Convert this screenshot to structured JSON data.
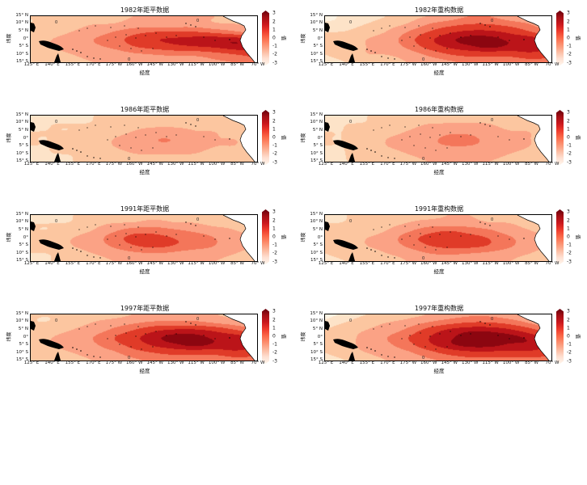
{
  "figure": {
    "background": "#ffffff"
  },
  "chart_data": {
    "type": "heatmap",
    "title": "",
    "axis": {
      "x_label": "经度",
      "y_label": "纬度",
      "x_ticks": [
        "125° E",
        "140° E",
        "155° E",
        "170° E",
        "175° W",
        "160° W",
        "145° W",
        "130° W",
        "115° W",
        "100° W",
        "85° W",
        "70° W"
      ],
      "y_ticks": [
        "15° N",
        "10° N",
        "5° N",
        "0°",
        "5° S",
        "10° S",
        "15° S"
      ],
      "x_range_deg": [
        125,
        -70
      ],
      "y_range_deg": [
        15,
        -15
      ]
    },
    "colorbar": {
      "label": "值",
      "ticks": [
        "3",
        "2",
        "1",
        "0",
        "-1",
        "-2",
        "-3"
      ],
      "range": [
        -3,
        3
      ],
      "colors": [
        "#67000d",
        "#a50f15",
        "#cb181d",
        "#ef3b2c",
        "#fb6a4a",
        "#fc9272",
        "#fcbba1",
        "#fee0d2",
        "#fff5eb"
      ]
    },
    "contour_label": "0",
    "levels": [
      0.25,
      0.5,
      1.0,
      1.5,
      2.0,
      2.5,
      2.85
    ],
    "level_colors": [
      "#fdf3e3",
      "#fde3c8",
      "#fcc6a0",
      "#fba285",
      "#f4765a",
      "#e03b28",
      "#bb1419",
      "#8c0610"
    ],
    "grid_shape": {
      "lat_rows": 7,
      "lon_cols": 12
    },
    "panels": [
      {
        "title": "1982年距平数据",
        "values": [
          [
            0.5,
            0.5,
            0.5,
            0.6,
            0.8,
            1.0,
            1.0,
            1.0,
            1.0,
            1.0,
            0.8,
            0.6
          ],
          [
            0.5,
            0.6,
            0.8,
            1.0,
            1.0,
            1.2,
            1.2,
            1.2,
            1.2,
            1.0,
            1.0,
            0.8
          ],
          [
            0.8,
            0.8,
            1.0,
            1.2,
            1.5,
            1.8,
            2.0,
            2.0,
            2.0,
            1.8,
            1.5,
            1.2
          ],
          [
            0.8,
            1.0,
            1.2,
            1.5,
            1.8,
            2.2,
            2.5,
            2.6,
            2.7,
            2.8,
            2.8,
            2.5
          ],
          [
            0.8,
            1.0,
            1.2,
            1.4,
            1.6,
            2.0,
            2.2,
            2.4,
            2.5,
            2.6,
            2.8,
            2.8
          ],
          [
            0.5,
            0.8,
            1.0,
            1.2,
            1.2,
            1.4,
            1.5,
            1.6,
            1.6,
            1.8,
            2.0,
            2.2
          ],
          [
            0.5,
            0.5,
            0.8,
            1.0,
            1.0,
            1.0,
            1.2,
            1.2,
            1.2,
            1.4,
            1.5,
            1.8
          ]
        ]
      },
      {
        "title": "1982年重构数据",
        "values": [
          [
            0.2,
            0.3,
            0.3,
            0.5,
            0.8,
            1.0,
            1.2,
            1.5,
            1.5,
            1.2,
            1.0,
            0.8
          ],
          [
            0.3,
            0.3,
            0.5,
            0.8,
            1.0,
            1.5,
            1.8,
            2.0,
            2.0,
            1.8,
            1.5,
            1.0
          ],
          [
            0.5,
            0.5,
            0.8,
            1.0,
            1.5,
            2.0,
            2.4,
            2.6,
            2.6,
            2.4,
            2.0,
            1.5
          ],
          [
            0.5,
            0.8,
            1.0,
            1.2,
            1.8,
            2.4,
            2.8,
            3.0,
            3.0,
            2.8,
            2.8,
            2.4
          ],
          [
            0.5,
            0.8,
            1.0,
            1.2,
            1.6,
            2.2,
            2.6,
            2.8,
            3.0,
            2.8,
            2.8,
            2.6
          ],
          [
            0.5,
            0.8,
            1.0,
            1.0,
            1.2,
            1.6,
            2.0,
            2.2,
            2.2,
            2.2,
            2.4,
            2.2
          ],
          [
            0.3,
            0.5,
            0.8,
            0.8,
            1.0,
            1.2,
            1.4,
            1.6,
            1.6,
            1.6,
            1.8,
            1.8
          ]
        ]
      },
      {
        "title": "1986年距平数据",
        "values": [
          [
            0.3,
            0.3,
            0.3,
            0.5,
            0.5,
            0.5,
            0.5,
            0.5,
            0.5,
            0.5,
            0.5,
            0.3
          ],
          [
            0.3,
            0.5,
            0.5,
            0.5,
            0.8,
            0.8,
            0.8,
            0.8,
            0.8,
            0.8,
            0.5,
            0.5
          ],
          [
            0.5,
            0.5,
            0.5,
            0.8,
            0.8,
            1.0,
            1.2,
            1.2,
            1.0,
            1.0,
            0.8,
            0.5
          ],
          [
            0.5,
            0.5,
            0.8,
            0.8,
            1.0,
            1.2,
            1.5,
            1.5,
            1.2,
            1.0,
            1.0,
            0.8
          ],
          [
            0.5,
            0.5,
            0.8,
            0.8,
            1.0,
            1.2,
            1.4,
            1.4,
            1.2,
            1.0,
            1.0,
            0.8
          ],
          [
            0.3,
            0.5,
            0.5,
            0.8,
            0.8,
            1.0,
            1.0,
            1.0,
            1.0,
            0.8,
            0.8,
            0.5
          ],
          [
            0.3,
            0.3,
            0.5,
            0.5,
            0.5,
            0.8,
            0.8,
            0.8,
            0.8,
            0.5,
            0.5,
            0.5
          ]
        ]
      },
      {
        "title": "1986年重构数据",
        "values": [
          [
            0.3,
            0.3,
            0.5,
            0.5,
            0.5,
            0.5,
            0.8,
            0.8,
            0.8,
            0.5,
            0.5,
            0.5
          ],
          [
            0.3,
            0.5,
            0.5,
            0.8,
            0.8,
            1.0,
            1.0,
            1.0,
            1.0,
            0.8,
            0.8,
            0.5
          ],
          [
            0.5,
            0.5,
            0.8,
            0.8,
            1.0,
            1.2,
            1.4,
            1.4,
            1.2,
            1.0,
            1.0,
            0.8
          ],
          [
            0.5,
            0.5,
            0.8,
            1.0,
            1.2,
            1.4,
            1.6,
            1.6,
            1.4,
            1.2,
            1.0,
            0.8
          ],
          [
            0.5,
            0.5,
            0.8,
            1.0,
            1.2,
            1.4,
            1.5,
            1.5,
            1.4,
            1.2,
            1.0,
            0.8
          ],
          [
            0.3,
            0.5,
            0.8,
            0.8,
            1.0,
            1.2,
            1.2,
            1.2,
            1.2,
            1.0,
            0.8,
            0.5
          ],
          [
            0.3,
            0.5,
            0.5,
            0.8,
            0.8,
            1.0,
            1.0,
            1.0,
            1.0,
            0.8,
            0.5,
            0.5
          ]
        ]
      },
      {
        "title": "1991年距平数据",
        "values": [
          [
            0.3,
            0.3,
            0.5,
            0.5,
            0.5,
            0.8,
            0.8,
            0.8,
            0.8,
            0.5,
            0.5,
            0.5
          ],
          [
            0.5,
            0.5,
            0.5,
            0.8,
            1.0,
            1.0,
            1.2,
            1.0,
            1.0,
            0.8,
            0.8,
            0.5
          ],
          [
            0.5,
            0.5,
            0.8,
            1.0,
            1.4,
            1.8,
            1.8,
            1.6,
            1.4,
            1.2,
            1.0,
            0.8
          ],
          [
            0.5,
            0.8,
            1.0,
            1.2,
            1.8,
            2.2,
            2.2,
            2.0,
            1.8,
            1.5,
            1.2,
            1.0
          ],
          [
            0.5,
            0.8,
            1.0,
            1.2,
            1.6,
            2.0,
            2.2,
            2.0,
            1.8,
            1.5,
            1.2,
            1.0
          ],
          [
            0.5,
            0.5,
            0.8,
            1.0,
            1.2,
            1.4,
            1.5,
            1.4,
            1.2,
            1.2,
            1.0,
            0.8
          ],
          [
            0.3,
            0.5,
            0.8,
            0.8,
            1.0,
            1.0,
            1.2,
            1.2,
            1.0,
            1.0,
            0.8,
            0.8
          ]
        ]
      },
      {
        "title": "1991年重构数据",
        "values": [
          [
            0.3,
            0.5,
            0.5,
            0.5,
            0.8,
            0.8,
            1.0,
            1.0,
            0.8,
            0.8,
            0.5,
            0.5
          ],
          [
            0.5,
            0.5,
            0.8,
            0.8,
            1.0,
            1.2,
            1.2,
            1.2,
            1.0,
            1.0,
            0.8,
            0.5
          ],
          [
            0.5,
            0.8,
            0.8,
            1.0,
            1.4,
            1.8,
            2.0,
            1.8,
            1.6,
            1.2,
            1.0,
            0.8
          ],
          [
            0.5,
            0.8,
            1.0,
            1.2,
            1.8,
            2.2,
            2.4,
            2.2,
            2.0,
            1.6,
            1.2,
            1.0
          ],
          [
            0.5,
            0.8,
            1.0,
            1.2,
            1.6,
            2.0,
            2.2,
            2.2,
            2.0,
            1.6,
            1.2,
            1.0
          ],
          [
            0.5,
            0.8,
            0.8,
            1.0,
            1.2,
            1.5,
            1.6,
            1.5,
            1.4,
            1.2,
            1.0,
            0.8
          ],
          [
            0.3,
            0.5,
            0.8,
            0.8,
            1.0,
            1.2,
            1.2,
            1.2,
            1.2,
            1.0,
            0.8,
            0.8
          ]
        ]
      },
      {
        "title": "1997年距平数据",
        "values": [
          [
            0.5,
            0.5,
            0.5,
            0.8,
            0.8,
            1.0,
            1.0,
            1.2,
            1.2,
            1.0,
            0.8,
            0.8
          ],
          [
            0.5,
            0.5,
            0.8,
            1.0,
            1.2,
            1.4,
            1.6,
            1.6,
            1.6,
            1.4,
            1.2,
            1.0
          ],
          [
            0.5,
            0.8,
            1.0,
            1.2,
            1.6,
            2.0,
            2.4,
            2.6,
            2.6,
            2.4,
            2.0,
            1.6
          ],
          [
            0.8,
            1.0,
            1.2,
            1.5,
            2.0,
            2.4,
            2.8,
            3.0,
            3.0,
            2.8,
            2.8,
            2.4
          ],
          [
            0.8,
            1.0,
            1.2,
            1.4,
            1.8,
            2.2,
            2.6,
            2.8,
            3.0,
            2.8,
            2.8,
            2.6
          ],
          [
            0.5,
            0.8,
            1.0,
            1.2,
            1.4,
            1.8,
            2.0,
            2.2,
            2.2,
            2.2,
            2.4,
            2.2
          ],
          [
            0.5,
            0.5,
            0.8,
            1.0,
            1.2,
            1.4,
            1.6,
            1.6,
            1.6,
            1.6,
            1.8,
            1.8
          ]
        ]
      },
      {
        "title": "1997年重构数据",
        "values": [
          [
            0.2,
            0.3,
            0.5,
            0.5,
            0.8,
            1.0,
            1.2,
            1.4,
            1.4,
            1.2,
            1.0,
            0.8
          ],
          [
            0.3,
            0.5,
            0.8,
            1.0,
            1.2,
            1.5,
            1.8,
            2.0,
            2.0,
            1.8,
            1.4,
            1.0
          ],
          [
            0.5,
            0.8,
            1.0,
            1.2,
            1.6,
            2.2,
            2.6,
            2.8,
            2.8,
            2.6,
            2.2,
            1.6
          ],
          [
            0.5,
            0.8,
            1.2,
            1.5,
            2.0,
            2.5,
            2.8,
            3.0,
            3.0,
            3.0,
            2.8,
            2.4
          ],
          [
            0.5,
            0.8,
            1.2,
            1.4,
            1.8,
            2.4,
            2.8,
            3.0,
            3.0,
            2.8,
            2.8,
            2.6
          ],
          [
            0.5,
            0.8,
            1.0,
            1.2,
            1.4,
            1.8,
            2.2,
            2.4,
            2.4,
            2.4,
            2.4,
            2.2
          ],
          [
            0.3,
            0.5,
            0.8,
            1.0,
            1.2,
            1.4,
            1.6,
            1.8,
            1.8,
            1.8,
            1.8,
            1.8
          ]
        ]
      }
    ]
  }
}
